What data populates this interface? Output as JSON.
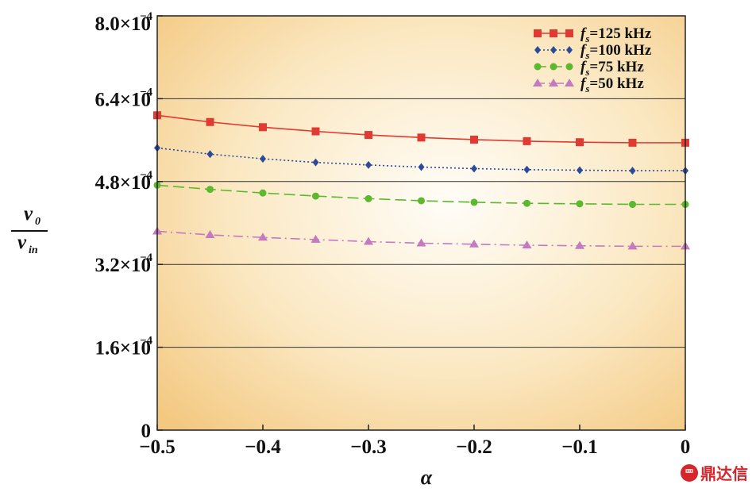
{
  "chart_data": {
    "type": "line",
    "xlabel": "α",
    "ylabel": {
      "numerator": "v",
      "numerator_sub": "0",
      "denominator": "v",
      "denominator_sub": "in"
    },
    "xlim": [
      -0.5,
      0
    ],
    "ylim": [
      0,
      0.0008
    ],
    "x_ticks": [
      -0.5,
      -0.4,
      -0.3,
      -0.2,
      -0.1,
      0
    ],
    "x_tick_labels": [
      "−0.5",
      "−0.4",
      "−0.3",
      "−0.2",
      "−0.1",
      "0"
    ],
    "y_ticks": [
      {
        "value": 0,
        "mantissa": "0",
        "exponent": ""
      },
      {
        "value": 0.00016,
        "mantissa": "1.6×10",
        "exponent": "−4"
      },
      {
        "value": 0.00032,
        "mantissa": "3.2×10",
        "exponent": "−4"
      },
      {
        "value": 0.00048,
        "mantissa": "4.8×10",
        "exponent": "−4"
      },
      {
        "value": 0.00064,
        "mantissa": "6.4×10",
        "exponent": "−4"
      },
      {
        "value": 0.0008,
        "mantissa": "8.0×10",
        "exponent": "−4"
      }
    ],
    "grid": "horizontal",
    "legend_position": "top-right",
    "x": [
      -0.5,
      -0.45,
      -0.4,
      -0.35,
      -0.3,
      -0.25,
      -0.2,
      -0.15,
      -0.1,
      -0.05,
      0
    ],
    "series": [
      {
        "name": "f",
        "name_sub": "s",
        "name_rest": "=125 kHz",
        "color": "#e03a32",
        "marker": "square",
        "dash": "solid",
        "values": [
          0.000608,
          0.000595,
          0.000585,
          0.000577,
          0.00057,
          0.000565,
          0.000561,
          0.000558,
          0.000556,
          0.000555,
          0.000555
        ]
      },
      {
        "name": "f",
        "name_sub": "s",
        "name_rest": "=100 kHz",
        "color": "#2b4a9a",
        "marker": "diamond",
        "dash": "dotted",
        "values": [
          0.000545,
          0.000533,
          0.000524,
          0.000517,
          0.000512,
          0.000508,
          0.000505,
          0.000503,
          0.000502,
          0.000501,
          0.000501
        ]
      },
      {
        "name": "f",
        "name_sub": "s",
        "name_rest": "=75 kHz",
        "color": "#5cb82e",
        "marker": "circle",
        "dash": "dashed",
        "values": [
          0.000473,
          0.000465,
          0.000458,
          0.000452,
          0.000447,
          0.000443,
          0.00044,
          0.000438,
          0.000437,
          0.000436,
          0.000436
        ]
      },
      {
        "name": "f",
        "name_sub": "s",
        "name_rest": "=50 kHz",
        "color": "#c47ac0",
        "marker": "triangle",
        "dash": "dashdot",
        "values": [
          0.000384,
          0.000377,
          0.000372,
          0.000368,
          0.000364,
          0.000361,
          0.000359,
          0.000357,
          0.000356,
          0.000355,
          0.000355
        ]
      }
    ]
  },
  "watermark": {
    "text": "鼎达信",
    "logo_glyph": "罒"
  }
}
